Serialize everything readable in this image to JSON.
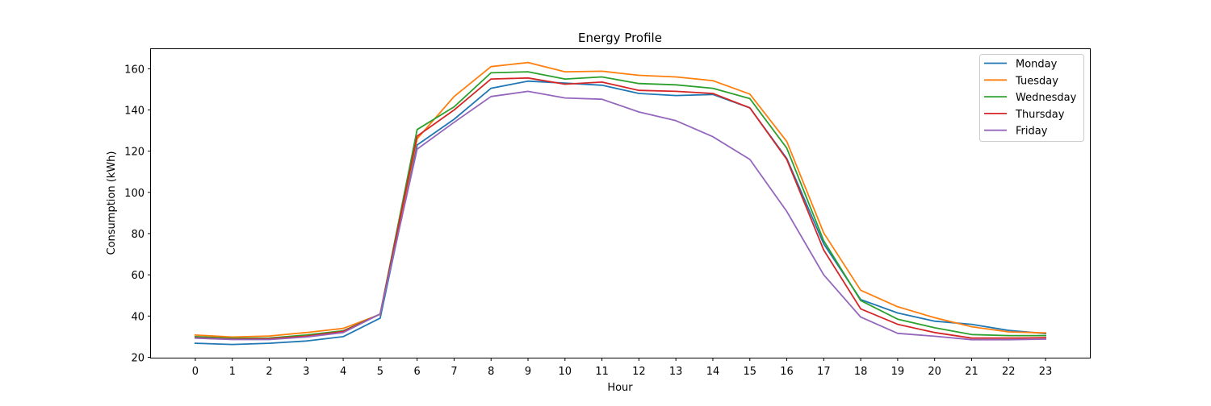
{
  "chart_data": {
    "type": "line",
    "title": "Energy Profile",
    "xlabel": "Hour",
    "ylabel": "Consumption (kWh)",
    "x": [
      0,
      1,
      2,
      3,
      4,
      5,
      6,
      7,
      8,
      9,
      10,
      11,
      12,
      13,
      14,
      15,
      16,
      17,
      18,
      19,
      20,
      21,
      22,
      23
    ],
    "xlim": [
      -1.2,
      24.2
    ],
    "ylim": [
      19.8,
      169.5
    ],
    "y_ticks": [
      20,
      40,
      60,
      80,
      100,
      120,
      140,
      160
    ],
    "grid": false,
    "legend_position": "top-right",
    "series": [
      {
        "name": "Monday",
        "color": "#1f77b4",
        "values": [
          26.8,
          26.2,
          26.8,
          27.9,
          30.0,
          39.0,
          123.0,
          135.5,
          150.5,
          154.0,
          153.0,
          152.0,
          148.0,
          147.0,
          147.5,
          141.0,
          116.5,
          75.0,
          48.0,
          41.5,
          37.5,
          36.0,
          33.0,
          31.5
        ]
      },
      {
        "name": "Tuesday",
        "color": "#ff7f0e",
        "values": [
          30.8,
          29.8,
          30.3,
          32.0,
          34.0,
          40.8,
          126.0,
          146.5,
          161.0,
          163.0,
          158.5,
          158.8,
          156.8,
          156.0,
          154.2,
          147.7,
          124.7,
          80.3,
          52.5,
          44.5,
          39.2,
          34.8,
          32.3,
          31.8
        ]
      },
      {
        "name": "Wednesday",
        "color": "#2ca02c",
        "values": [
          30.0,
          29.2,
          29.3,
          30.8,
          32.8,
          41.0,
          130.5,
          141.5,
          158.0,
          158.5,
          155.0,
          156.0,
          152.8,
          152.2,
          150.5,
          145.5,
          121.5,
          76.5,
          47.5,
          38.5,
          34.3,
          31.0,
          30.5,
          30.5
        ]
      },
      {
        "name": "Thursday",
        "color": "#d62728",
        "values": [
          29.5,
          28.8,
          29.0,
          30.2,
          32.5,
          41.0,
          127.3,
          140.0,
          155.0,
          155.5,
          152.5,
          153.5,
          149.5,
          149.0,
          148.0,
          141.0,
          116.0,
          72.0,
          43.5,
          36.0,
          32.0,
          29.3,
          29.3,
          29.5
        ]
      },
      {
        "name": "Friday",
        "color": "#9467bd",
        "values": [
          29.3,
          28.6,
          28.6,
          29.8,
          32.0,
          41.0,
          121.0,
          134.0,
          146.5,
          149.0,
          145.8,
          145.2,
          139.0,
          134.8,
          127.0,
          116.0,
          90.8,
          60.0,
          39.5,
          31.6,
          30.2,
          28.5,
          28.5,
          28.8
        ]
      }
    ]
  }
}
